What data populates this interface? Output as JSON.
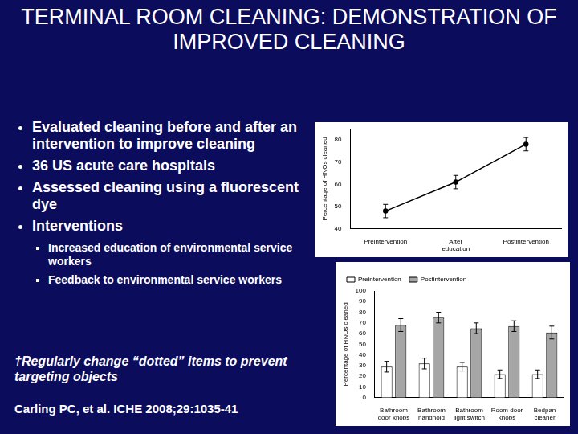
{
  "slide": {
    "title": "TERMINAL ROOM CLEANING: DEMONSTRATION OF IMPROVED CLEANING",
    "bullets": [
      {
        "text": "Evaluated cleaning before and after an intervention to improve cleaning"
      },
      {
        "text": "36 US acute care hospitals"
      },
      {
        "text": "Assessed cleaning using a fluorescent dye"
      },
      {
        "text": "Interventions",
        "sub_bullets": [
          "Increased education of environmental service workers",
          "Feedback to environmental service workers"
        ]
      }
    ],
    "note": "†Regularly change “dotted” items to prevent targeting objects",
    "citation": "Carling PC, et al. ICHE 2008;29:1035-41"
  },
  "chart_data": [
    {
      "type": "line",
      "categories": [
        "Preintervention",
        "After education",
        "Postintervention"
      ],
      "values": [
        48,
        61,
        78
      ],
      "errors": [
        3,
        3,
        3
      ],
      "color": "#000000",
      "marker": "circle",
      "y_label": "Percentage of HNOs cleaned",
      "ylim": [
        40,
        85
      ],
      "yticks": [
        40,
        50,
        60,
        70,
        80
      ],
      "grid": false
    },
    {
      "type": "bar",
      "categories": [
        "Bathroom door knobs",
        "Bathroom handhold",
        "Bathroom light switch",
        "Room door knobs",
        "Bedpan cleaner"
      ],
      "series": [
        {
          "name": "Preintervention",
          "color": "#ffffff",
          "values": [
            29,
            32,
            29,
            22,
            22
          ],
          "errors": [
            5,
            5,
            4,
            4,
            4
          ]
        },
        {
          "name": "Postintervention",
          "color": "#a6a6a6",
          "values": [
            68,
            75,
            65,
            67,
            61
          ],
          "errors": [
            6,
            5,
            5,
            5,
            6
          ]
        }
      ],
      "y_label": "Percentage of HNOs cleaned",
      "ylim": [
        0,
        100
      ],
      "yticks": [
        0,
        10,
        20,
        30,
        40,
        50,
        60,
        70,
        80,
        90,
        100
      ],
      "grid": false,
      "legend": "top"
    }
  ]
}
